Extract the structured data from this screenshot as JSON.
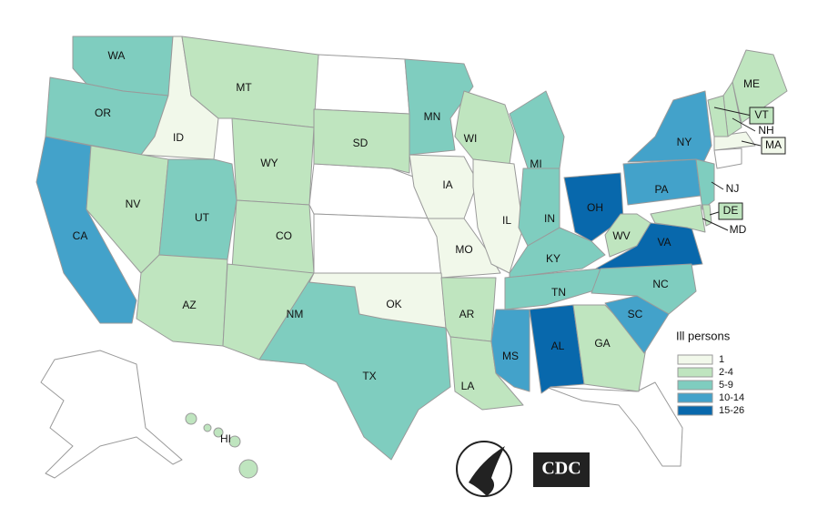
{
  "map": {
    "legend": {
      "title": "Ill persons",
      "bins": [
        {
          "label": "1",
          "color": "#f1f8ea"
        },
        {
          "label": "2-4",
          "color": "#bfe5bf"
        },
        {
          "label": "5-9",
          "color": "#7fcdbf"
        },
        {
          "label": "10-14",
          "color": "#43a2ca"
        },
        {
          "label": "15-26",
          "color": "#0868ac"
        }
      ]
    },
    "states": [
      {
        "label": "WA",
        "bin": "5-9"
      },
      {
        "label": "OR",
        "bin": "5-9"
      },
      {
        "label": "CA",
        "bin": "10-14"
      },
      {
        "label": "ID",
        "bin": "1"
      },
      {
        "label": "NV",
        "bin": "2-4"
      },
      {
        "label": "MT",
        "bin": "2-4"
      },
      {
        "label": "WY",
        "bin": "2-4"
      },
      {
        "label": "UT",
        "bin": "5-9"
      },
      {
        "label": "AZ",
        "bin": "2-4"
      },
      {
        "label": "CO",
        "bin": "2-4"
      },
      {
        "label": "NM",
        "bin": "2-4"
      },
      {
        "label": "SD",
        "bin": "2-4"
      },
      {
        "label": "TX",
        "bin": "5-9"
      },
      {
        "label": "MN",
        "bin": "5-9"
      },
      {
        "label": "IA",
        "bin": "1"
      },
      {
        "label": "MO",
        "bin": "1"
      },
      {
        "label": "OK",
        "bin": "1"
      },
      {
        "label": "AR",
        "bin": "2-4"
      },
      {
        "label": "LA",
        "bin": "2-4"
      },
      {
        "label": "WI",
        "bin": "2-4"
      },
      {
        "label": "IL",
        "bin": "1"
      },
      {
        "label": "MI",
        "bin": "5-9"
      },
      {
        "label": "IN",
        "bin": "5-9"
      },
      {
        "label": "KY",
        "bin": "5-9"
      },
      {
        "label": "TN",
        "bin": "5-9"
      },
      {
        "label": "MS",
        "bin": "10-14"
      },
      {
        "label": "AL",
        "bin": "15-26"
      },
      {
        "label": "GA",
        "bin": "2-4"
      },
      {
        "label": "OH",
        "bin": "15-26"
      },
      {
        "label": "WV",
        "bin": "2-4"
      },
      {
        "label": "VA",
        "bin": "15-26"
      },
      {
        "label": "NC",
        "bin": "5-9"
      },
      {
        "label": "SC",
        "bin": "10-14"
      },
      {
        "label": "PA",
        "bin": "10-14"
      },
      {
        "label": "NY",
        "bin": "10-14"
      },
      {
        "label": "NJ",
        "bin": "5-9"
      },
      {
        "label": "DE",
        "bin": "2-4"
      },
      {
        "label": "MD",
        "bin": "2-4"
      },
      {
        "label": "MA",
        "bin": "1"
      },
      {
        "label": "NH",
        "bin": "2-4"
      },
      {
        "label": "VT",
        "bin": "2-4"
      },
      {
        "label": "ME",
        "bin": "2-4"
      },
      {
        "label": "HI",
        "bin": "2-4"
      }
    ]
  },
  "logos": {
    "cdc": "CDC"
  }
}
